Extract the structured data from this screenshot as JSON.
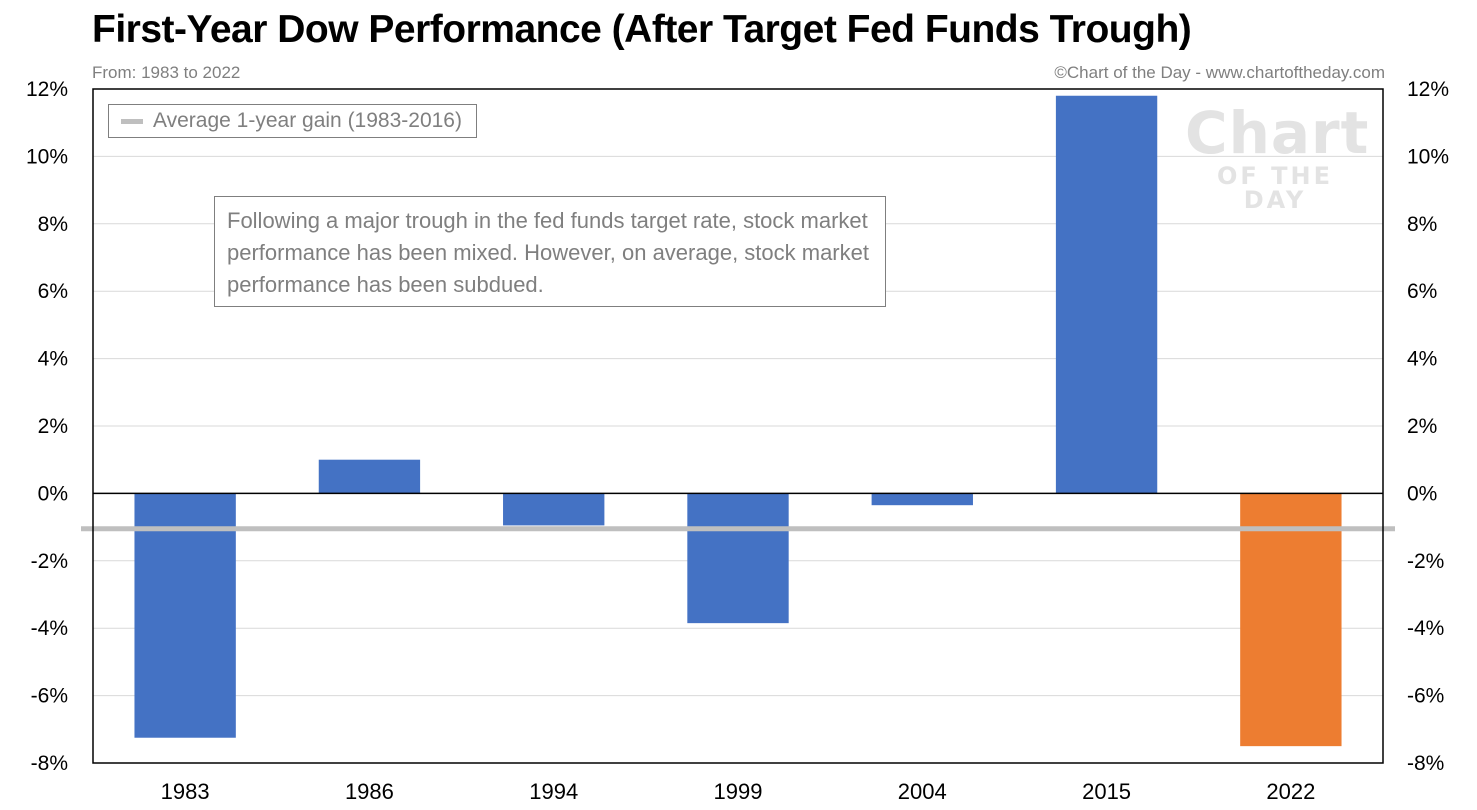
{
  "header": {
    "title": "First-Year Dow Performance (After Target Fed Funds Trough)",
    "subtitle": "From: 1983 to 2022",
    "credit": "©Chart of the Day - www.chartoftheday.com"
  },
  "legend": {
    "label": "Average 1-year gain (1983-2016)"
  },
  "annotation": {
    "text": "Following a major trough in the fed funds target rate, stock market performance has been mixed. However, on average, stock market performance has been subdued."
  },
  "watermark": {
    "line1": "Chart",
    "line2": "OF THE DAY"
  },
  "colors": {
    "bar": "#4472c4",
    "highlight": "#ed7d31",
    "average_line": "#bfbfbf",
    "grid": "#d9d9d9"
  },
  "chart_data": {
    "type": "bar",
    "categories": [
      "1983",
      "1986",
      "1994",
      "1999",
      "2004",
      "2015",
      "2022"
    ],
    "values": [
      -7.25,
      1.0,
      -0.95,
      -3.85,
      -0.35,
      11.8,
      -7.5
    ],
    "bar_colors": [
      "#4472c4",
      "#4472c4",
      "#4472c4",
      "#4472c4",
      "#4472c4",
      "#4472c4",
      "#ed7d31"
    ],
    "average": -1.05,
    "ylim": [
      -8,
      12
    ],
    "yticks": [
      12,
      10,
      8,
      6,
      4,
      2,
      0,
      -2,
      -4,
      -6,
      -8
    ],
    "ytick_labels": [
      "12%",
      "10%",
      "8%",
      "6%",
      "4%",
      "2%",
      "0%",
      "-2%",
      "-4%",
      "-6%",
      "-8%"
    ],
    "grid": true,
    "secondary_y_axis": true,
    "legend_position": "top-left"
  }
}
